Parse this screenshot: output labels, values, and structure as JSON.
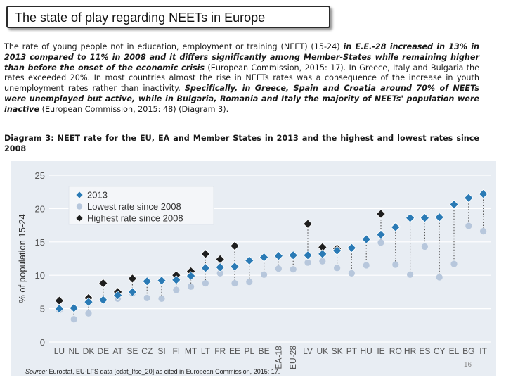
{
  "slide": {
    "title": "The state of play regarding NEETs in Europe",
    "para": [
      {
        "t": "The rate of young people not in education, employment or training (NEET) (15-24) ",
        "em": false
      },
      {
        "t": "in E.E.-28 increased in 13% in 2013 compared to 11% in 2008 and it differs significantly among Member-States while remaining higher than before the onset of the economic crisis",
        "em": true
      },
      {
        "t": " (European Commission, 2015: 17). In Greece, Italy and Bulgaria the rates exceeded 20%. In most countries almost the rise in NEETs rates was a consequence of the increase in youth unemployment rates rather than inactivity. ",
        "em": false
      },
      {
        "t": "Specifically, in Greece, Spain and Croatia around 70% of NEETs were unemployed but active, while in Bulgaria, Romania and Italy the majority of NEETs' population were inactive",
        "em": true
      },
      {
        "t": " (European Commission, 2015: 48) (Diagram 3).",
        "em": false
      }
    ],
    "caption": "Diagram 3: NEET rate for the EU, EA and Member States in 2013 and the highest and lowest rates since 2008",
    "source_label": "Source:",
    "source_text": " Eurostat, EU-LFS data [edat_lfse_20] as cited in European Commission, 2015: 17.",
    "page_number": "16"
  },
  "colors": {
    "y2013": "#2a7ab5",
    "lowest": "#b7c7dc",
    "highest": "#1e1e1e",
    "plot_bg": "#e8edf3",
    "grid": "#ffffff",
    "dotted": "#555555",
    "axis_text": "#555555"
  },
  "chart_data": {
    "type": "scatter",
    "title": "",
    "xlabel": "",
    "ylabel": "% of population 15-24",
    "ylim": [
      0,
      25
    ],
    "yticks": [
      0,
      5,
      10,
      15,
      20,
      25
    ],
    "grid": true,
    "legend_position": "top-left",
    "categories": [
      "LU",
      "NL",
      "DK",
      "DE",
      "AT",
      "SE",
      "CZ",
      "SI",
      "FI",
      "MT",
      "LT",
      "FR",
      "EE",
      "PL",
      "BE",
      "EA-18",
      "EU-28",
      "LV",
      "UK",
      "SK",
      "PT",
      "HU",
      "IE",
      "RO",
      "HR",
      "ES",
      "CY",
      "EL",
      "BG",
      "IT"
    ],
    "series": [
      {
        "name": "2013",
        "marker": "diamond",
        "values": [
          5.0,
          5.1,
          6.0,
          6.3,
          7.0,
          7.5,
          9.1,
          9.2,
          9.3,
          9.9,
          11.1,
          11.2,
          11.3,
          12.2,
          12.7,
          12.9,
          13.0,
          13.0,
          13.2,
          13.7,
          14.1,
          15.4,
          16.1,
          17.2,
          18.6,
          18.6,
          18.7,
          20.6,
          21.6,
          22.2
        ]
      },
      {
        "name": "Lowest rate since 2008",
        "marker": "circle",
        "values": [
          4.8,
          3.4,
          4.3,
          6.3,
          6.5,
          7.3,
          6.6,
          6.5,
          7.8,
          8.3,
          8.8,
          10.3,
          8.8,
          9.0,
          10.1,
          11.0,
          10.9,
          11.9,
          12.1,
          11.1,
          10.3,
          11.5,
          14.9,
          11.6,
          10.1,
          14.3,
          9.7,
          11.7,
          17.4,
          16.6
        ]
      },
      {
        "name": "Highest rate since 2008",
        "marker": "diamond",
        "values": [
          6.2,
          5.1,
          6.6,
          8.8,
          7.5,
          9.5,
          9.1,
          9.2,
          10.0,
          10.6,
          13.2,
          12.4,
          14.4,
          12.2,
          12.7,
          12.9,
          13.0,
          17.7,
          14.2,
          14.0,
          14.1,
          15.4,
          19.2,
          17.3,
          18.6,
          18.6,
          18.7,
          20.6,
          21.6,
          22.2
        ]
      }
    ]
  }
}
